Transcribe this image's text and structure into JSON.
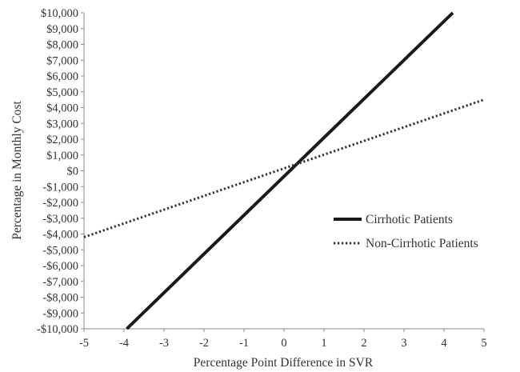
{
  "chart_data": {
    "type": "line",
    "xlabel": "Percentage Point Difference in SVR",
    "ylabel": "Percentage in Monthly Cost",
    "xlim": [
      -5,
      5
    ],
    "ylim": [
      -10000,
      10000
    ],
    "x_ticks": [
      "-5",
      "-4",
      "-3",
      "-2",
      "-1",
      "0",
      "1",
      "2",
      "3",
      "4",
      "5"
    ],
    "y_ticks": [
      "$10,000",
      "$9,000",
      "$8,000",
      "$7,000",
      "$6,000",
      "$5,000",
      "$4,000",
      "$3,000",
      "$2,000",
      "$1,000",
      "$0",
      "-$1,000",
      "-$2,000",
      "-$3,000",
      "-$4,000",
      "-$5,000",
      "-$6,000",
      "-$7,000",
      "-$8,000",
      "-$9,000",
      "-$10,000"
    ],
    "grid": false,
    "legend_position": "right",
    "series": [
      {
        "name": "Cirrhotic Patients",
        "style": "solid",
        "color": "#1a1a1a",
        "x": [
          -3.93,
          4.22
        ],
        "y": [
          -10000,
          10000
        ]
      },
      {
        "name": "Non-Cirrhotic Patients",
        "style": "dotted",
        "color": "#333333",
        "x": [
          -5,
          5
        ],
        "y": [
          -4200,
          4500
        ]
      }
    ]
  }
}
